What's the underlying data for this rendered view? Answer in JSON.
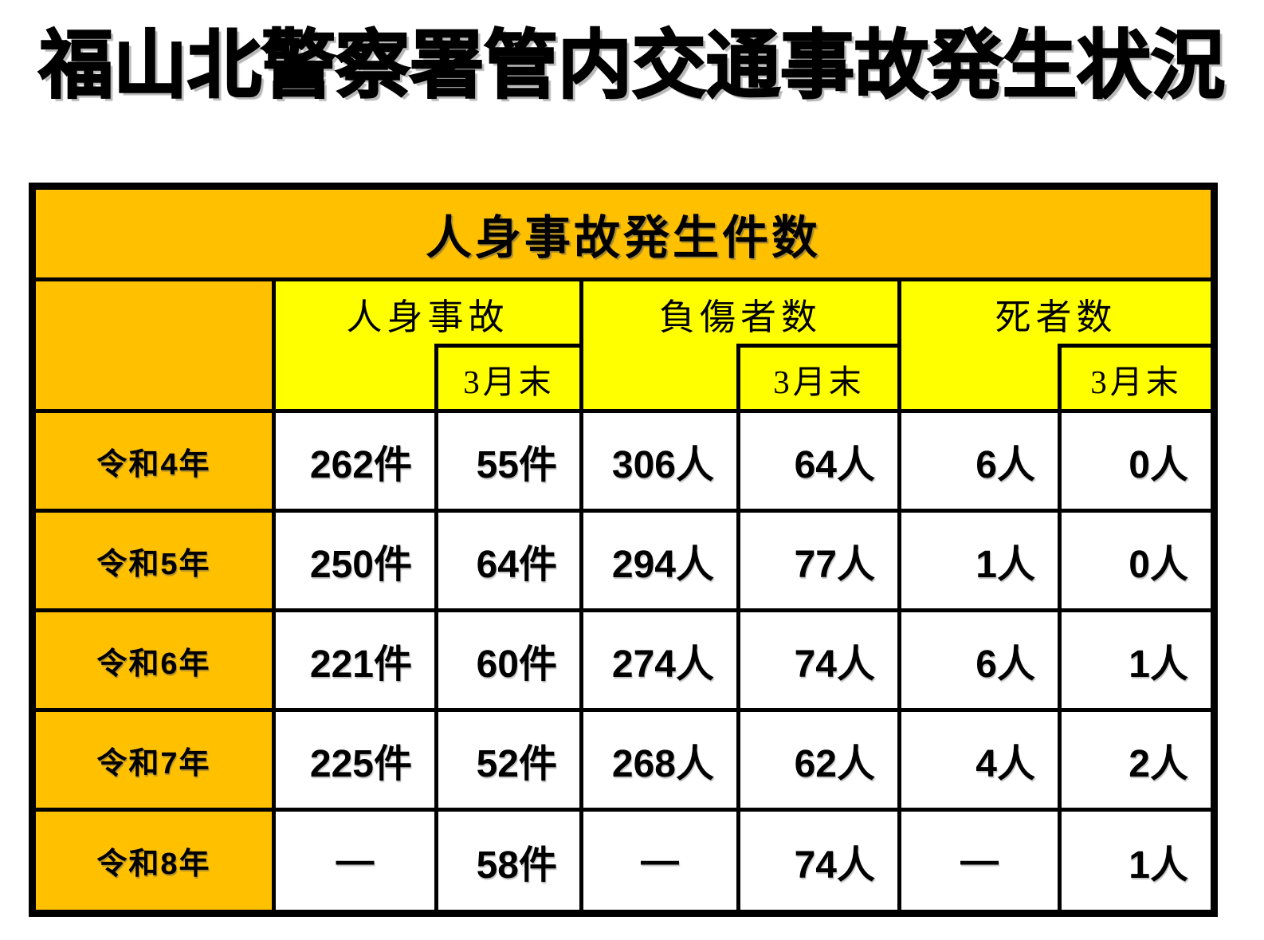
{
  "page": {
    "title": "福山北警察署管内交通事故発生状況"
  },
  "colors": {
    "orange": "#FFC000",
    "yellow": "#FFFF00",
    "border": "#000000"
  },
  "table": {
    "title": "人身事故発生件数",
    "groups": [
      {
        "label": "人身事故",
        "sub_label": "3月末"
      },
      {
        "label": "負傷者数",
        "sub_label": "3月末"
      },
      {
        "label": "死者数",
        "sub_label": "3月末"
      }
    ],
    "rows": [
      {
        "year": "令和4年",
        "values": [
          "262件",
          "55件",
          "306人",
          "64人",
          "6人",
          "0人"
        ]
      },
      {
        "year": "令和5年",
        "values": [
          "250件",
          "64件",
          "294人",
          "77人",
          "1人",
          "0人"
        ]
      },
      {
        "year": "令和6年",
        "values": [
          "221件",
          "60件",
          "274人",
          "74人",
          "6人",
          "1人"
        ]
      },
      {
        "year": "令和7年",
        "values": [
          "225件",
          "52件",
          "268人",
          "62人",
          "4人",
          "2人"
        ]
      },
      {
        "year": "令和8年",
        "values": [
          "—",
          "58件",
          "—",
          "74人",
          "—",
          "1人"
        ]
      }
    ]
  }
}
